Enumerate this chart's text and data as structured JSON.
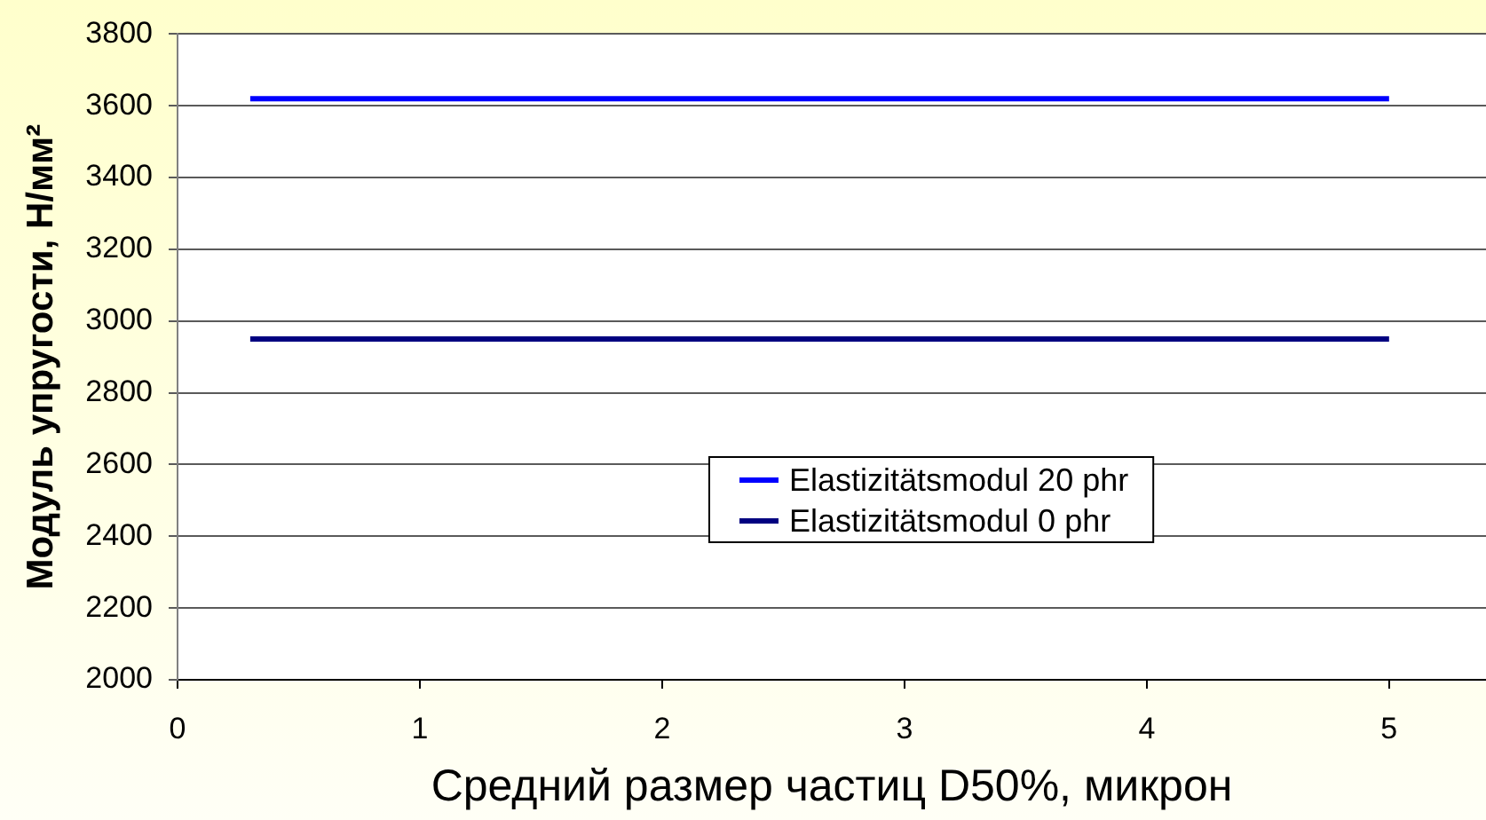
{
  "chart_data": {
    "type": "line",
    "xlabel": "Средний размер частиц D50%, микрон",
    "ylabel": "Модуль упругости, Н/мм²",
    "x": [
      0.3,
      5
    ],
    "series": [
      {
        "name": "Elastizitätsmodul 20 phr",
        "color": "#0000ff",
        "values": [
          3620,
          3620
        ]
      },
      {
        "name": "Elastizitätsmodul 0 phr",
        "color": "#000080",
        "values": [
          2950,
          2950
        ]
      }
    ],
    "xlim": [
      0,
      5.4
    ],
    "xticks": [
      0,
      1,
      2,
      3,
      4,
      5
    ],
    "ylim": [
      2000,
      3800
    ],
    "yticks": [
      2000,
      2200,
      2400,
      2600,
      2800,
      3000,
      3200,
      3400,
      3600,
      3800
    ],
    "grid": "y",
    "legend": "bottom",
    "marker": "none"
  }
}
